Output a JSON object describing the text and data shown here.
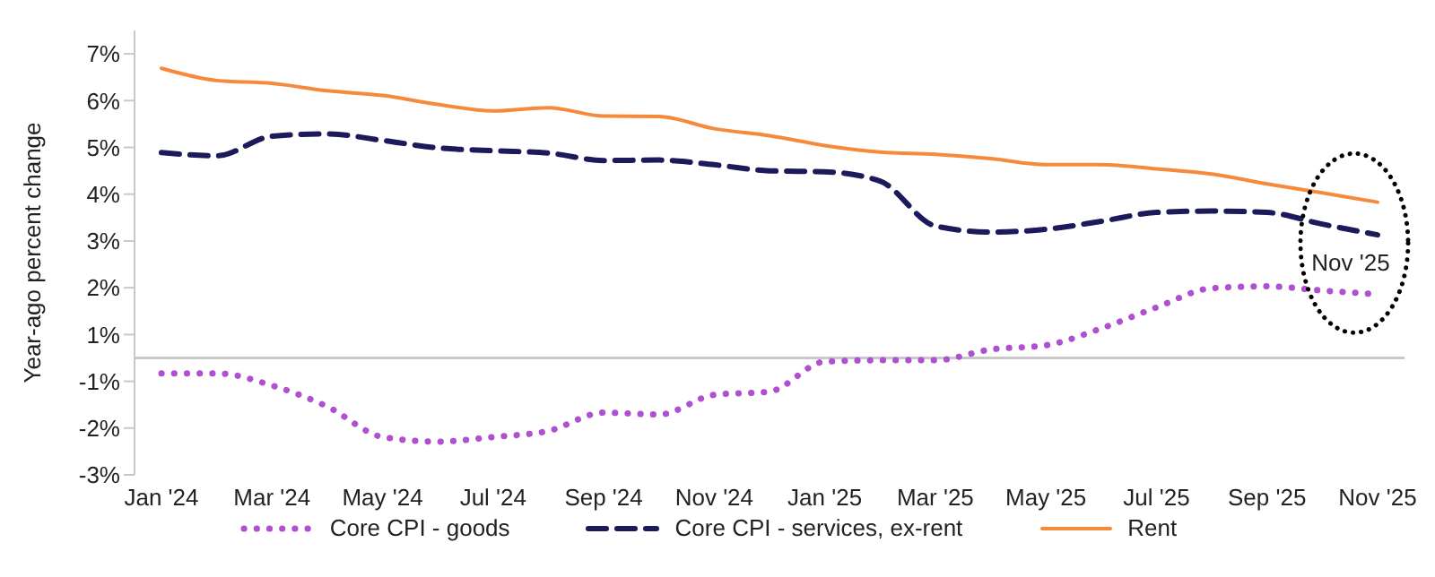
{
  "chart_data": {
    "type": "line",
    "ylabel": "Year-ago percent change",
    "categories": [
      "Jan '24",
      null,
      "Mar '24",
      null,
      "May '24",
      null,
      "Jul '24",
      null,
      "Sep '24",
      null,
      "Nov '24",
      null,
      "Jan '25",
      null,
      "Mar '25",
      null,
      "May '25",
      null,
      "Jul '25",
      null,
      "Sep '25",
      null,
      "Nov '25"
    ],
    "series": [
      {
        "name": "Core CPI - goods",
        "color": "#b04fd0",
        "line_style": "dotted",
        "values": [
          -0.33,
          -0.33,
          -0.59,
          -1.04,
          -1.69,
          -1.79,
          -1.69,
          -1.56,
          -1.17,
          -1.21,
          -0.79,
          -0.72,
          -0.08,
          -0.05,
          -0.05,
          0.18,
          0.27,
          0.63,
          1.08,
          1.49,
          1.53,
          1.44,
          1.36
        ]
      },
      {
        "name": "Core CPI - services, ex-rent",
        "color": "#1c1a5a",
        "line_style": "dashed",
        "values": [
          4.39,
          4.32,
          4.74,
          4.79,
          4.65,
          4.49,
          4.43,
          4.38,
          4.22,
          4.23,
          4.13,
          4.0,
          3.98,
          3.78,
          2.82,
          2.69,
          2.75,
          2.92,
          3.11,
          3.14,
          3.11,
          2.86,
          2.63
        ]
      },
      {
        "name": "Rent",
        "color": "#f58a3c",
        "line_style": "solid",
        "values": [
          6.19,
          5.93,
          5.87,
          5.71,
          5.61,
          5.42,
          5.28,
          5.35,
          5.17,
          5.16,
          4.9,
          4.75,
          4.54,
          4.4,
          4.35,
          4.26,
          4.13,
          4.13,
          4.04,
          3.93,
          3.72,
          3.53,
          3.33
        ]
      }
    ],
    "ylim": [
      -2.5,
      7
    ],
    "yticks": [
      {
        "value": 6.5,
        "label": "7%"
      },
      {
        "value": 5.5,
        "label": "6%"
      },
      {
        "value": 4.5,
        "label": "5%"
      },
      {
        "value": 3.5,
        "label": "4%"
      },
      {
        "value": 2.5,
        "label": "3%"
      },
      {
        "value": 1.5,
        "label": "2%"
      },
      {
        "value": 0.5,
        "label": "1%"
      },
      {
        "value": -0.5,
        "label": "-1%"
      },
      {
        "value": -1.5,
        "label": "-2%"
      },
      {
        "value": -2.5,
        "label": "-3%"
      }
    ],
    "ref_lines": [
      {
        "axis": "y",
        "value": 0,
        "color": "#c8c8c8"
      }
    ],
    "annotations": [
      "Nov '25"
    ],
    "marker": "none",
    "legend": "bottom"
  }
}
